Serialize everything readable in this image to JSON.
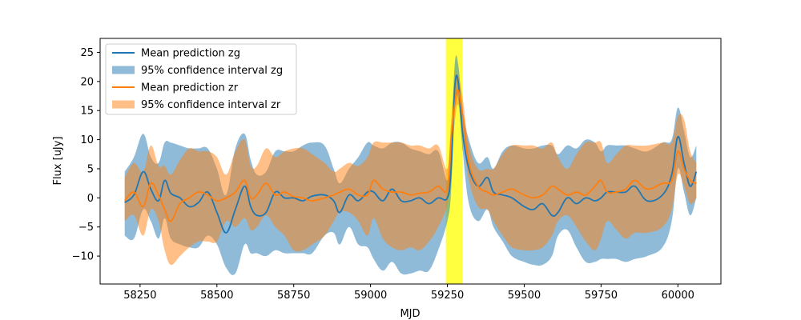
{
  "chart_data": {
    "type": "line",
    "title": "",
    "xlabel": "MJD",
    "ylabel": "Flux [uJy]",
    "xlim": [
      58120,
      60140
    ],
    "ylim": [
      -14.8,
      27.4
    ],
    "xticks": [
      58250,
      58500,
      58750,
      59000,
      59250,
      59500,
      59750,
      60000
    ],
    "yticks": [
      -10,
      -5,
      0,
      5,
      10,
      15,
      20,
      25
    ],
    "grid": false,
    "legend_position": "upper-left",
    "highlight_span": {
      "x0": 59245,
      "x1": 59300,
      "color": "#ffff00"
    },
    "series": [
      {
        "name": "Mean prediction zg",
        "role": "line",
        "color": "#1f77b4",
        "x": [
          58200,
          58230,
          58260,
          58285,
          58310,
          58330,
          58350,
          58380,
          58410,
          58440,
          58470,
          58500,
          58530,
          58560,
          58590,
          58610,
          58630,
          58660,
          58690,
          58720,
          58750,
          58780,
          58810,
          58850,
          58880,
          58900,
          58930,
          58960,
          58990,
          59010,
          59040,
          59070,
          59100,
          59130,
          59160,
          59190,
          59220,
          59250,
          59262,
          59274,
          59285,
          59300,
          59320,
          59350,
          59380,
          59400,
          59430,
          59460,
          59500,
          59530,
          59560,
          59590,
          59610,
          59640,
          59670,
          59700,
          59730,
          59750,
          59770,
          59800,
          59830,
          59860,
          59900,
          59950,
          59980,
          60000,
          60020,
          60040,
          60060
        ],
        "y": [
          -0.8,
          0.5,
          4.5,
          1.5,
          -0.5,
          3,
          0.8,
          0,
          -1.5,
          -0.8,
          1,
          -2.5,
          -6,
          -2,
          2,
          -1.5,
          -3,
          -2.5,
          1,
          0,
          0,
          -0.5,
          0.3,
          0.5,
          -0.5,
          -2.5,
          0.5,
          -0.5,
          1,
          1,
          -0.5,
          1.5,
          -0.5,
          -0.5,
          0,
          -1,
          0,
          0,
          5,
          19,
          20,
          11,
          5,
          2,
          3.5,
          1,
          0.5,
          0,
          -1.5,
          -2,
          -1,
          -3,
          -2.5,
          0,
          -1,
          0,
          -0.5,
          0,
          1,
          1,
          1,
          2,
          -0.5,
          0.5,
          4,
          10.5,
          6,
          2,
          4.5
        ]
      },
      {
        "name": "95% confidence interval zg",
        "role": "band",
        "color": "#1f77b4",
        "x": [
          58200,
          58230,
          58260,
          58285,
          58310,
          58330,
          58350,
          58380,
          58410,
          58440,
          58470,
          58500,
          58530,
          58560,
          58590,
          58610,
          58630,
          58660,
          58690,
          58720,
          58750,
          58780,
          58810,
          58850,
          58880,
          58900,
          58930,
          58960,
          58990,
          59010,
          59040,
          59070,
          59100,
          59130,
          59160,
          59190,
          59220,
          59250,
          59262,
          59274,
          59285,
          59300,
          59320,
          59350,
          59380,
          59400,
          59430,
          59460,
          59500,
          59530,
          59560,
          59590,
          59610,
          59640,
          59670,
          59700,
          59730,
          59750,
          59770,
          59800,
          59830,
          59860,
          59900,
          59950,
          59980,
          60000,
          60020,
          60040,
          60060
        ],
        "lower": [
          -6.5,
          -7,
          -2,
          -4,
          -7,
          -3.5,
          -7,
          -8,
          -8.5,
          -8.5,
          -6.5,
          -8,
          -12,
          -13,
          -8,
          -9.5,
          -9.5,
          -10,
          -9,
          -9.5,
          -9.5,
          -9.5,
          -9.5,
          -6.5,
          -6,
          -8,
          -5,
          -8,
          -8.5,
          -10.5,
          -12.5,
          -11,
          -13,
          -13,
          -12.5,
          -12.5,
          -9,
          -4,
          1,
          15,
          17,
          8,
          -1,
          -4,
          -2,
          -5,
          -7.5,
          -10,
          -11,
          -11.5,
          -11.5,
          -10,
          -6.5,
          -5.5,
          -8.5,
          -11,
          -11,
          -10.5,
          -10.5,
          -10.5,
          -11,
          -10.5,
          -10,
          -8.5,
          -4,
          5,
          1,
          -3,
          0
        ],
        "upper": [
          4.5,
          7,
          11,
          7,
          6,
          9.5,
          9.5,
          9,
          8.5,
          8.5,
          8.5,
          5,
          0.5,
          8.5,
          11,
          6.5,
          4,
          4.5,
          8,
          8,
          8,
          9,
          9.5,
          9,
          5,
          2.5,
          5,
          7,
          9.5,
          9,
          8.5,
          9.5,
          9.5,
          8.5,
          8,
          7.5,
          8,
          3,
          9,
          23,
          23,
          15,
          10,
          6,
          7,
          5,
          8,
          9,
          8.5,
          8.5,
          9,
          9,
          7.5,
          9,
          8.5,
          10,
          9.5,
          8,
          9,
          9,
          9,
          8.5,
          8,
          9.5,
          10,
          15.5,
          11.5,
          7,
          9
        ]
      },
      {
        "name": "Mean prediction zr",
        "role": "line",
        "color": "#ff7f0e",
        "x": [
          58200,
          58230,
          58260,
          58285,
          58310,
          58330,
          58350,
          58380,
          58410,
          58440,
          58470,
          58500,
          58530,
          58560,
          58590,
          58610,
          58630,
          58660,
          58690,
          58720,
          58750,
          58780,
          58810,
          58850,
          58880,
          58900,
          58930,
          58960,
          58990,
          59010,
          59040,
          59070,
          59100,
          59130,
          59160,
          59190,
          59220,
          59250,
          59262,
          59274,
          59285,
          59300,
          59320,
          59350,
          59380,
          59400,
          59430,
          59460,
          59500,
          59530,
          59560,
          59590,
          59610,
          59640,
          59670,
          59700,
          59730,
          59750,
          59770,
          59800,
          59830,
          59860,
          59900,
          59950,
          59980,
          60000,
          60020,
          60040,
          60060
        ],
        "y": [
          -0.5,
          1,
          -1.5,
          2.5,
          0.5,
          -2,
          -4,
          -1,
          0,
          1,
          0.5,
          -0.5,
          0,
          1,
          3,
          0,
          0.5,
          2.5,
          0.5,
          1,
          0.2,
          0,
          -0.5,
          0,
          0.5,
          1,
          1.5,
          0.5,
          0.5,
          3,
          1.5,
          1,
          1,
          0.5,
          0.8,
          1,
          2,
          1.5,
          10,
          16,
          18.5,
          14,
          6,
          2,
          1,
          0.5,
          1,
          1.5,
          0.5,
          0,
          0.5,
          2,
          1.5,
          0.5,
          1,
          0.5,
          2,
          3,
          1,
          1,
          1.5,
          3,
          1.5,
          2.5,
          3,
          8,
          5,
          3,
          2.5
        ]
      },
      {
        "name": "95% confidence interval zr",
        "role": "band",
        "color": "#ff7f0e",
        "x": [
          58200,
          58230,
          58260,
          58285,
          58310,
          58330,
          58350,
          58380,
          58410,
          58440,
          58470,
          58500,
          58530,
          58560,
          58590,
          58610,
          58630,
          58660,
          58690,
          58720,
          58750,
          58780,
          58810,
          58850,
          58880,
          58900,
          58930,
          58960,
          58990,
          59010,
          59040,
          59070,
          59100,
          59130,
          59160,
          59190,
          59220,
          59250,
          59262,
          59274,
          59285,
          59300,
          59320,
          59350,
          59380,
          59400,
          59430,
          59460,
          59500,
          59530,
          59560,
          59590,
          59610,
          59640,
          59670,
          59700,
          59730,
          59750,
          59770,
          59800,
          59830,
          59860,
          59900,
          59950,
          59980,
          60000,
          60020,
          60040,
          60060
        ],
        "lower": [
          -4,
          -3,
          -6.5,
          -2,
          -4,
          -9,
          -11.5,
          -10,
          -8.5,
          -7.5,
          -7.5,
          -7.5,
          -4,
          -5,
          -3.5,
          -5.5,
          -5,
          -3,
          -5,
          -6.5,
          -9,
          -9,
          -8,
          -6.5,
          -4,
          -2.5,
          -2.5,
          -4,
          -6.5,
          -3.5,
          -7,
          -8.5,
          -9,
          -8.5,
          -9,
          -7.5,
          -5,
          -1,
          6,
          13,
          16,
          11,
          3,
          -1.5,
          -2,
          -4,
          -6.5,
          -8.5,
          -9,
          -9,
          -8.5,
          -6.5,
          -4,
          -3,
          -5,
          -7.5,
          -9,
          -7,
          -4,
          -5.5,
          -7,
          -6,
          -6,
          -5,
          -2,
          4,
          2,
          -1,
          0
        ],
        "upper": [
          3.5,
          6,
          4.5,
          9,
          5.5,
          5.5,
          4,
          6.5,
          8.5,
          8,
          8,
          7,
          4,
          8,
          10,
          5.5,
          5.5,
          8.5,
          7,
          8,
          8.5,
          8.5,
          7.5,
          6,
          4.5,
          5,
          6,
          5.5,
          7,
          9.5,
          9.5,
          9.5,
          9.5,
          9,
          9,
          8.5,
          9,
          5,
          13,
          20,
          21,
          17,
          9,
          5,
          5,
          5,
          7.5,
          9,
          9,
          9,
          8.5,
          9.5,
          7,
          5,
          7.5,
          9.5,
          9.5,
          9.5,
          6,
          7.5,
          9,
          9,
          9,
          9.5,
          9.5,
          14,
          13.5,
          8,
          6
        ]
      }
    ]
  }
}
